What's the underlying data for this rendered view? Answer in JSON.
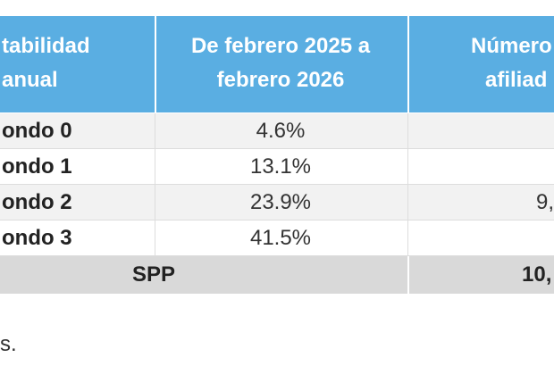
{
  "table": {
    "header": [
      "tabilidad",
      "anual",
      "De febrero 2025 a",
      "febrero 2026",
      "Número",
      "afiliad"
    ],
    "rows": [
      [
        "ondo 0",
        "4.6%",
        ""
      ],
      [
        "ondo 1",
        "13.1%",
        ""
      ],
      [
        "ondo 2",
        "23.9%",
        "9,"
      ],
      [
        "ondo 3",
        "41.5%",
        ""
      ]
    ],
    "total": [
      "SPP",
      "10,"
    ]
  },
  "footer": "s."
}
